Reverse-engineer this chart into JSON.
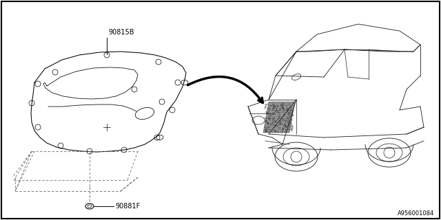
{
  "bg_color": "#ffffff",
  "line_color": "#000000",
  "dash_color": "#666666",
  "label_90815B": "90815B",
  "label_90881F": "90881F",
  "label_ref": "A956001084",
  "lw_main": 0.7,
  "lw_dash": 0.6,
  "fontsize_label": 7,
  "fontsize_ref": 6
}
